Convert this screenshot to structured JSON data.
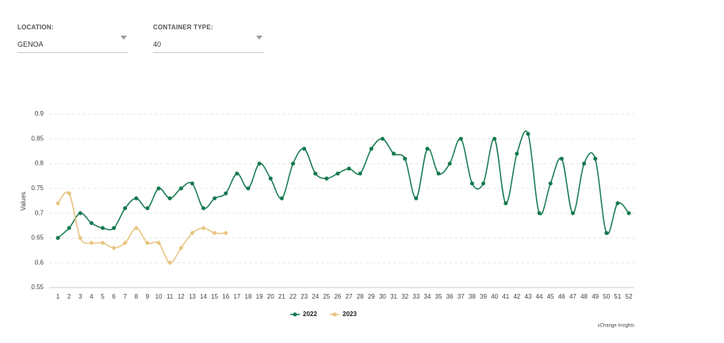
{
  "controls": [
    {
      "label": "LOCATION:",
      "value": "GENOA"
    },
    {
      "label": "CONTAINER TYPE:",
      "value": "40"
    }
  ],
  "chart_data": {
    "type": "line",
    "y_label": "Values",
    "x": [
      1,
      2,
      3,
      4,
      5,
      6,
      7,
      8,
      9,
      10,
      11,
      12,
      13,
      14,
      15,
      16,
      17,
      18,
      19,
      20,
      21,
      22,
      23,
      24,
      25,
      26,
      27,
      28,
      29,
      30,
      31,
      32,
      33,
      34,
      35,
      36,
      37,
      38,
      39,
      40,
      41,
      42,
      43,
      44,
      45,
      46,
      47,
      48,
      49,
      50,
      51,
      52
    ],
    "xlim": [
      1,
      52
    ],
    "ylim": [
      0.55,
      0.9
    ],
    "yticks": [
      0.55,
      0.6,
      0.65,
      0.7,
      0.75,
      0.8,
      0.85,
      0.9
    ],
    "grid": true,
    "legend": "bottom",
    "series": [
      {
        "name": "2022",
        "color": "#157a4f",
        "values": [
          0.65,
          0.67,
          0.7,
          0.68,
          0.67,
          0.67,
          0.71,
          0.73,
          0.71,
          0.75,
          0.73,
          0.75,
          0.76,
          0.71,
          0.73,
          0.74,
          0.78,
          0.75,
          0.8,
          0.77,
          0.73,
          0.8,
          0.83,
          0.78,
          0.77,
          0.78,
          0.79,
          0.78,
          0.83,
          0.85,
          0.82,
          0.81,
          0.73,
          0.83,
          0.78,
          0.8,
          0.85,
          0.76,
          0.76,
          0.85,
          0.72,
          0.82,
          0.86,
          0.7,
          0.76,
          0.81,
          0.7,
          0.8,
          0.81,
          0.66,
          0.72,
          0.7
        ]
      },
      {
        "name": "2023",
        "color": "#e8c37e",
        "values": [
          0.72,
          0.74,
          0.65,
          0.64,
          0.64,
          0.63,
          0.64,
          0.67,
          0.64,
          0.64,
          0.6,
          0.63,
          0.66,
          0.67,
          0.66,
          0.66,
          null,
          null,
          null,
          null,
          null,
          null,
          null,
          null,
          null,
          null,
          null,
          null,
          null,
          null,
          null,
          null,
          null,
          null,
          null,
          null,
          null,
          null,
          null,
          null,
          null,
          null,
          null,
          null,
          null,
          null,
          null,
          null,
          null,
          null,
          null,
          null
        ]
      }
    ],
    "credit": "xChange Insights"
  }
}
